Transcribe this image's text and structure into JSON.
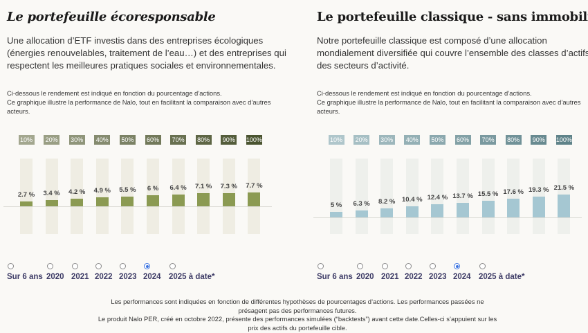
{
  "panels": [
    {
      "title": "Le portefeuille écoresponsable",
      "description": "Une allocation d’ETF investis dans des entreprises écologiques (énergies renouvelables, traitement de l’eau…) et des entreprises qui respectent les meilleures pratiques sociales et environnementales.",
      "note_line1": "Ci-dessous le rendement est indiqué en fonction du pourcentage d’actions.",
      "note_line2": "Ce graphique illustre la performance de Nalo, tout en facilitant la comparaison avec d’autres acteurs.",
      "period_options": [
        "Sur 6 ans",
        "2020",
        "2021",
        "2022",
        "2023",
        "2024",
        "2025 à date*"
      ],
      "selected_period": "2024"
    },
    {
      "title": "Le portefeuille classique - sans immobilier",
      "description": "Notre portefeuille classique est composé d’une allocation mondialement diversifiée qui couvre l’ensemble des classes d’actifs et des secteurs d’activité.",
      "note_line1": "Ci-dessous le rendement est indiqué en fonction du pourcentage d’actions.",
      "note_line2": "Ce graphique illustre la performance de Nalo, tout en facilitant la comparaison avec d’autres acteurs.",
      "period_options": [
        "Sur 6 ans",
        "2020",
        "2021",
        "2022",
        "2023",
        "2024",
        "2025 à date*"
      ],
      "selected_period": "2024"
    }
  ],
  "chart_data": [
    {
      "type": "bar",
      "categories": [
        "10%",
        "20%",
        "30%",
        "40%",
        "50%",
        "60%",
        "70%",
        "80%",
        "90%",
        "100%"
      ],
      "values": [
        2.7,
        3.4,
        4.2,
        4.9,
        5.5,
        6,
        6.4,
        7.1,
        7.3,
        7.7
      ],
      "value_labels": [
        "2.7 %",
        "3.4 %",
        "4.2 %",
        "4.9 %",
        "5.5 %",
        "6 %",
        "6.4 %",
        "7.1 %",
        "7.3 %",
        "7.7 %"
      ],
      "ylim": [
        -15.4,
        26.5
      ],
      "grid": false,
      "colors": {
        "bar": "#8b9a52",
        "column_bg": "#efede3",
        "chip_from": "#a3a78f",
        "chip_to": "#4a5430"
      }
    },
    {
      "type": "bar",
      "categories": [
        "10%",
        "20%",
        "30%",
        "40%",
        "50%",
        "60%",
        "70%",
        "80%",
        "90%",
        "100%"
      ],
      "values": [
        5,
        6.3,
        8.2,
        10.4,
        12.4,
        13.7,
        15.5,
        17.6,
        19.3,
        21.5
      ],
      "value_labels": [
        "5 %",
        "6.3 %",
        "8.2 %",
        "10.4 %",
        "12.4 %",
        "13.7 %",
        "15.5 %",
        "17.6 %",
        "19.3 %",
        "21.5 %"
      ],
      "ylim": [
        -15.7,
        55.5
      ],
      "grid": false,
      "colors": {
        "bar": "#a5c7d2",
        "column_bg": "#eef0ec",
        "chip_from": "#afc6cb",
        "chip_to": "#5f8389"
      }
    }
  ],
  "footer": {
    "line1": "Les performances sont indiquées en fonction de différentes hypothèses de pourcentages d’actions. Les performances passées ne présagent pas des performances futures.",
    "line2": "Le produit Nalo PER, créé en octobre 2022, présente des performances simulées (“backtests”) avant cette date.Celles-ci s’appuient sur les prix des actifs du portefeuille cible."
  }
}
